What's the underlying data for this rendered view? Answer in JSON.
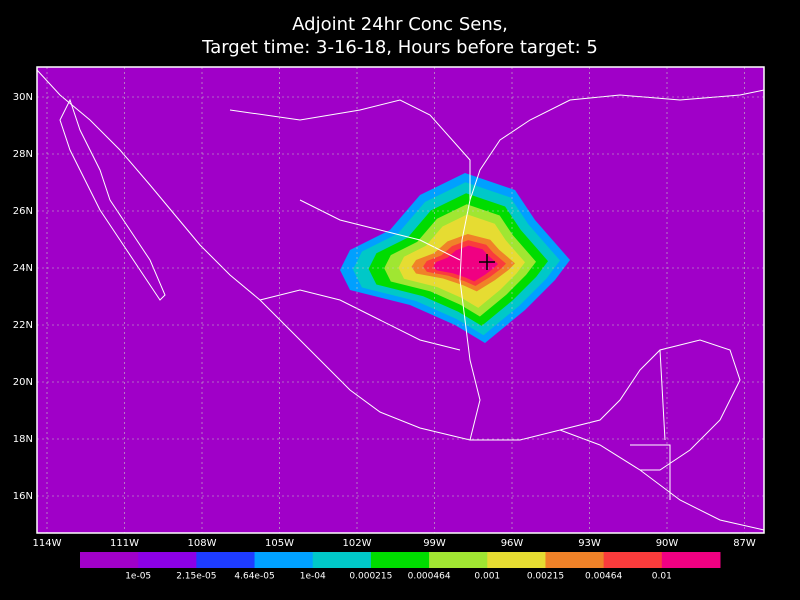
{
  "title": [
    "Adjoint 24hr Conc Sens,",
    "Target time: 3-16-18, Hours before target: 5"
  ],
  "lat_labels": [
    "30N",
    "28N",
    "26N",
    "24N",
    "22N",
    "20N",
    "18N",
    "16N"
  ],
  "lon_labels": [
    "114W",
    "111W",
    "108W",
    "105W",
    "102W",
    "99W",
    "96W",
    "93W",
    "90W",
    "87W"
  ],
  "colorbar": {
    "colors": [
      "#a000c8",
      "#8c00e6",
      "#1e3cff",
      "#00a0ff",
      "#00c8c8",
      "#00dc00",
      "#a0e632",
      "#e6dc32",
      "#f08228",
      "#fa3c3c",
      "#f00082"
    ],
    "labels": [
      "1e-05",
      "2.15e-05",
      "4.64e-05",
      "1e-04",
      "0.000215",
      "0.000464",
      "0.001",
      "0.00215",
      "0.00464",
      "0.01"
    ]
  }
}
